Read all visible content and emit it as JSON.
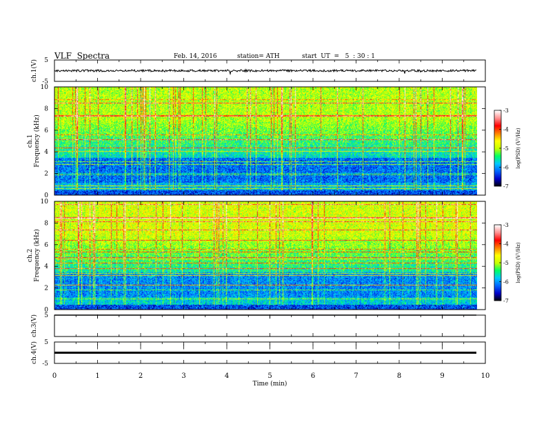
{
  "header": {
    "title": "VLF  Spectra",
    "date": "Feb. 14, 2016",
    "station": "station= ATH",
    "start": "start  UT  =   5  : 30 : 1"
  },
  "chart_data": [
    {
      "type": "line",
      "panel": "ch.1 waveform",
      "ylabel": "ch.1(V)",
      "yticks": [
        "5",
        "-5"
      ],
      "ylim": [
        -5,
        5
      ],
      "xlim": [
        0,
        10
      ],
      "baseline": 0,
      "noise_amplitude": 0.5,
      "data_end_x": 9.8
    },
    {
      "type": "heatmap",
      "panel": "ch.1 spectrogram",
      "ylabel": "ch.1\nFrequency  (kHz)",
      "ylim": [
        0,
        10
      ],
      "yticks": [
        "0",
        "2",
        "4",
        "6",
        "8",
        "10"
      ],
      "xlim": [
        0,
        10
      ],
      "data_end_x": 9.8,
      "colorbar": {
        "label": "log(PSD) (V²/Hz)",
        "range": [
          -7,
          -3
        ],
        "ticks": [
          "-3",
          "-4",
          "-5",
          "-6",
          "-7"
        ],
        "colors": [
          "#000000",
          "#0000c8",
          "#0064ff",
          "#00c8ff",
          "#00ff64",
          "#c8ff00",
          "#ffff00",
          "#ff8000",
          "#ff0000",
          "#ff9090",
          "#ffffff"
        ]
      }
    },
    {
      "type": "heatmap",
      "panel": "ch.2 spectrogram",
      "ylabel": "ch.2\nFrequency  (kHz)",
      "ylim": [
        0,
        10
      ],
      "yticks": [
        "0",
        "2",
        "4",
        "6",
        "8",
        "10"
      ],
      "xlim": [
        0,
        10
      ],
      "data_end_x": 9.8,
      "colorbar": {
        "label": "log(PSD) (V²/Hz)",
        "range": [
          -7,
          -3
        ],
        "ticks": [
          "-3",
          "-4",
          "-5",
          "-6",
          "-7"
        ]
      }
    },
    {
      "type": "line",
      "panel": "ch.3 waveform",
      "ylabel": "ch.3(V)",
      "yticks": [
        "5"
      ],
      "ylim": [
        -5,
        5
      ],
      "xlim": [
        0,
        10
      ],
      "baseline": 5,
      "data_end_x": 9.8
    },
    {
      "type": "line",
      "panel": "ch.4 waveform",
      "ylabel": "ch.4(V)",
      "yticks": [
        "5",
        "-5"
      ],
      "ylim": [
        -5,
        5
      ],
      "xlim": [
        0,
        10
      ],
      "baseline": 0,
      "data_end_x": 9.8
    }
  ],
  "xaxis": {
    "label": "Time  (min)",
    "ticks": [
      "0",
      "1",
      "2",
      "3",
      "4",
      "5",
      "6",
      "7",
      "8",
      "9",
      "10"
    ],
    "range": [
      0,
      10
    ]
  }
}
